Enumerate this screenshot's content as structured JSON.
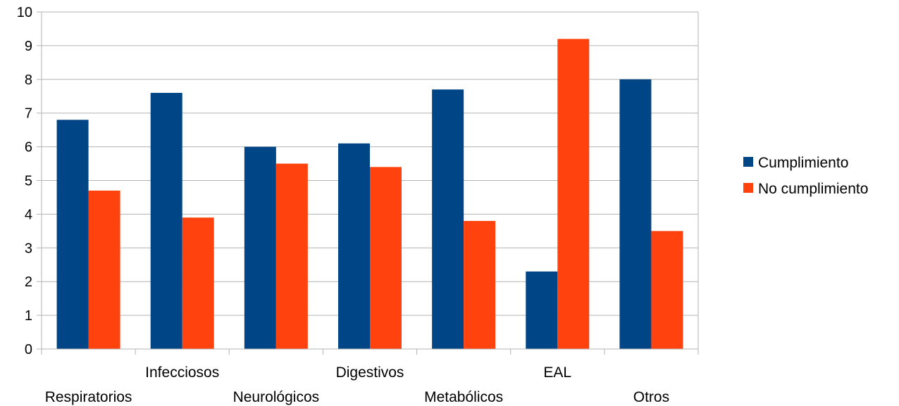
{
  "chart_data": {
    "type": "bar",
    "categories": [
      "Respiratorios",
      "Infecciosos",
      "Neurológicos",
      "Digestivos",
      "Metabólicos",
      "EAL",
      "Otros"
    ],
    "series": [
      {
        "name": "Cumplimiento",
        "color": "#004586",
        "values": [
          6.8,
          7.6,
          6.0,
          6.1,
          7.7,
          2.3,
          8.0
        ]
      },
      {
        "name": "No cumplimiento",
        "color": "#ff420e",
        "values": [
          4.7,
          3.9,
          5.5,
          5.4,
          3.8,
          9.2,
          3.5
        ]
      }
    ],
    "ylim": [
      0,
      10
    ],
    "yticks": [
      0,
      1,
      2,
      3,
      4,
      5,
      6,
      7,
      8,
      9,
      10
    ],
    "grid": true,
    "legend": "right",
    "title": "",
    "xlabel": "",
    "ylabel": ""
  }
}
